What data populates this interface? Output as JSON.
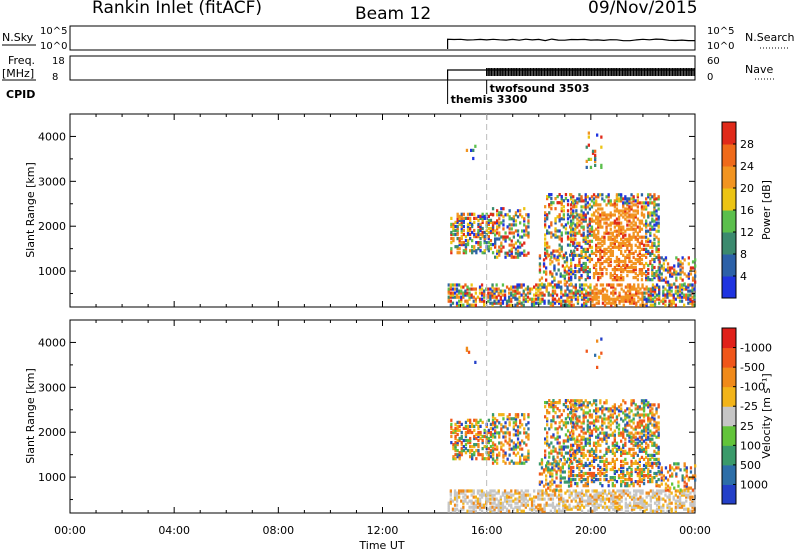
{
  "header": {
    "station": "Rankin Inlet (fitACF)",
    "beam": "Beam 12",
    "date": "09/Nov/2015"
  },
  "summary_panels": {
    "nsky_label": "N.Sky",
    "nsky_ticks": [
      "10^5",
      "10^0"
    ],
    "nsearch_label": "N.Search",
    "nsearch_ticks": [
      "10^5",
      "10^0"
    ],
    "freq_label_top": "Freq.",
    "freq_label_bottom": "[MHz]",
    "freq_ticks": [
      "18",
      "8"
    ],
    "nave_label": "Nave",
    "nave_ticks": [
      "60",
      "0"
    ],
    "cpid_label": "CPID",
    "cpid_programs": [
      {
        "name": "themis 3300",
        "start_hour": 14.5
      },
      {
        "name": "twofsound 3503",
        "start_hour": 16.0
      }
    ]
  },
  "chart_data": [
    {
      "type": "heatmap",
      "name": "power",
      "ylabel": "Slant Range [km]",
      "ylim": [
        200,
        4500
      ],
      "yticks": [
        1000,
        2000,
        3000,
        4000
      ],
      "xlim": [
        0,
        24
      ],
      "colorbar_label": "Power [dB]",
      "colorbar_ticks": [
        "4",
        "8",
        "12",
        "16",
        "20",
        "24",
        "28"
      ],
      "colorbar_colors": [
        "#1f34e0",
        "#2c61a8",
        "#3b8a6e",
        "#5bbf4c",
        "#ecc414",
        "#f29420",
        "#ef6a1a",
        "#e02a1a"
      ],
      "data_start_hour": 14.5
    },
    {
      "type": "heatmap",
      "name": "velocity",
      "ylabel": "Slant Range [km]",
      "xlabel": "Time UT",
      "ylim": [
        200,
        4500
      ],
      "yticks": [
        1000,
        2000,
        3000,
        4000
      ],
      "xlim": [
        0,
        24
      ],
      "xticks": [
        "00:00",
        "04:00",
        "08:00",
        "12:00",
        "16:00",
        "20:00",
        "00:00"
      ],
      "colorbar_label": "Velocity [m s⁻¹]",
      "colorbar_ticks": [
        "1000",
        "500",
        "100",
        "25",
        "-25",
        "-100",
        "-500",
        "-1000"
      ],
      "colorbar_colors": [
        "#2440c8",
        "#2d6ea8",
        "#3a9a6a",
        "#62c43a",
        "#c6c6c6",
        "#f2b41a",
        "#f08a1a",
        "#f0561a",
        "#e0201a"
      ],
      "data_start_hour": 14.5
    }
  ]
}
